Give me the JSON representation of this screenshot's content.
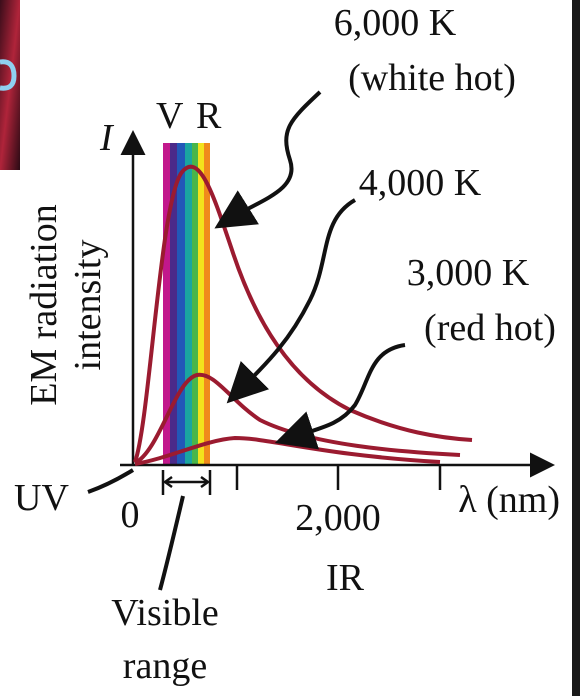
{
  "figure": {
    "axis_symbol": "I",
    "band_labels": {
      "violet": "V",
      "red": "R"
    },
    "y_axis_label": [
      "EM radiation",
      "intensity"
    ],
    "x_axis_label": "λ (nm)",
    "x_ticks": [
      "0",
      "2,000"
    ],
    "regions": {
      "uv": "UV",
      "ir": "IR",
      "visible": [
        "Visible",
        "range"
      ]
    },
    "curves": [
      {
        "label": "6,000 K",
        "note": "(white hot)"
      },
      {
        "label": "4,000 K"
      },
      {
        "label": "3,000 K",
        "note": "(red hot)"
      }
    ]
  }
}
